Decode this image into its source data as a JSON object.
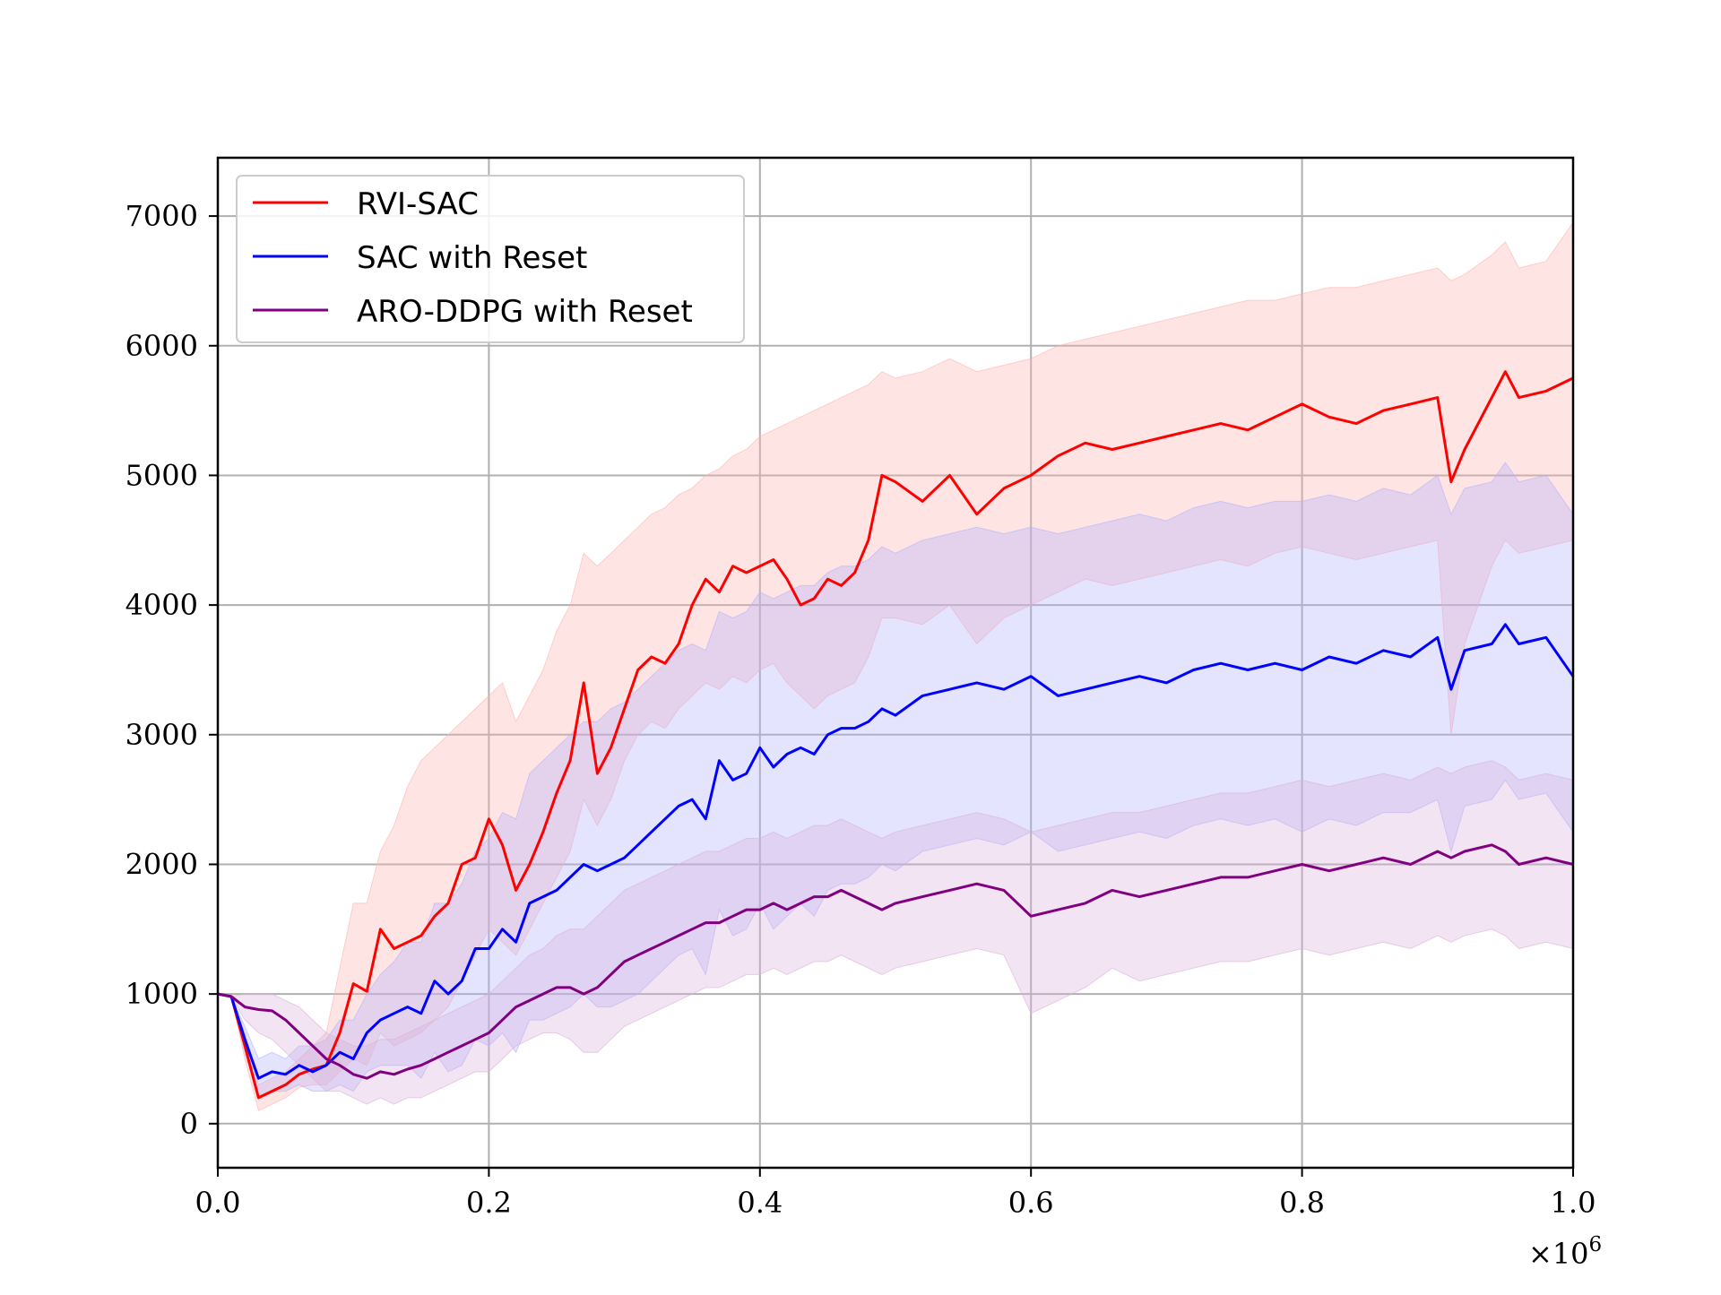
{
  "chart_data": {
    "type": "line",
    "title": "",
    "xlabel": "",
    "ylabel": "",
    "x_multiplier_label": "×10^6",
    "x_multiplier": "×10",
    "x_multiplier_exp": "6",
    "xlim": [
      0.0,
      1.0
    ],
    "ylim": [
      -340,
      7450
    ],
    "x_ticks": [
      0.0,
      0.2,
      0.4,
      0.6,
      0.8,
      1.0
    ],
    "x_tick_labels": [
      "0.0",
      "0.2",
      "0.4",
      "0.6",
      "0.8",
      "1.0"
    ],
    "y_ticks": [
      0,
      1000,
      2000,
      3000,
      4000,
      5000,
      6000,
      7000
    ],
    "y_tick_labels": [
      "0",
      "1000",
      "2000",
      "3000",
      "4000",
      "5000",
      "6000",
      "7000"
    ],
    "grid": true,
    "legend_position": "top-left",
    "bands": "shaded region around each series (variability)",
    "series": [
      {
        "name": "RVI-SAC",
        "color": "#ff0000",
        "band_color": "#ffb3b3",
        "x": [
          0.0,
          0.01,
          0.02,
          0.03,
          0.04,
          0.05,
          0.06,
          0.07,
          0.08,
          0.09,
          0.1,
          0.11,
          0.12,
          0.13,
          0.14,
          0.15,
          0.16,
          0.17,
          0.18,
          0.19,
          0.2,
          0.21,
          0.22,
          0.23,
          0.24,
          0.25,
          0.26,
          0.27,
          0.28,
          0.29,
          0.3,
          0.31,
          0.32,
          0.33,
          0.34,
          0.35,
          0.36,
          0.37,
          0.38,
          0.39,
          0.4,
          0.41,
          0.42,
          0.43,
          0.44,
          0.45,
          0.46,
          0.47,
          0.48,
          0.49,
          0.5,
          0.52,
          0.54,
          0.56,
          0.58,
          0.6,
          0.62,
          0.64,
          0.66,
          0.68,
          0.7,
          0.72,
          0.74,
          0.76,
          0.78,
          0.8,
          0.82,
          0.84,
          0.86,
          0.88,
          0.9,
          0.91,
          0.92,
          0.94,
          0.95,
          0.96,
          0.98,
          1.0
        ],
        "y": [
          1000,
          980,
          600,
          200,
          250,
          300,
          380,
          420,
          450,
          700,
          1080,
          1020,
          1500,
          1350,
          1400,
          1450,
          1600,
          1700,
          2000,
          2050,
          2350,
          2150,
          1800,
          2000,
          2250,
          2550,
          2800,
          3400,
          2700,
          2900,
          3200,
          3500,
          3600,
          3550,
          3700,
          4000,
          4200,
          4100,
          4300,
          4250,
          4300,
          4350,
          4200,
          4000,
          4050,
          4200,
          4150,
          4250,
          4500,
          5000,
          4950,
          4800,
          5000,
          4700,
          4900,
          5000,
          5150,
          5250,
          5200,
          5250,
          5300,
          5350,
          5400,
          5350,
          5450,
          5550,
          5450,
          5400,
          5500,
          5550,
          5600,
          4950,
          5200,
          5600,
          5800,
          5600,
          5650,
          5750
        ],
        "upper": [
          1000,
          980,
          700,
          300,
          350,
          400,
          500,
          600,
          700,
          1200,
          1700,
          1700,
          2100,
          2300,
          2600,
          2800,
          2900,
          3000,
          3100,
          3200,
          3300,
          3400,
          3100,
          3300,
          3500,
          3800,
          4000,
          4400,
          4300,
          4400,
          4500,
          4600,
          4700,
          4750,
          4850,
          4900,
          5000,
          5050,
          5150,
          5200,
          5300,
          5350,
          5400,
          5450,
          5500,
          5550,
          5600,
          5650,
          5700,
          5800,
          5750,
          5800,
          5900,
          5800,
          5850,
          5900,
          6000,
          6050,
          6100,
          6150,
          6200,
          6250,
          6300,
          6350,
          6350,
          6400,
          6450,
          6450,
          6500,
          6550,
          6600,
          6500,
          6550,
          6700,
          6800,
          6600,
          6650,
          6950
        ],
        "lower": [
          1000,
          980,
          500,
          100,
          150,
          200,
          280,
          300,
          300,
          400,
          500,
          450,
          700,
          600,
          650,
          700,
          800,
          900,
          1100,
          1300,
          1500,
          1400,
          1300,
          1500,
          1700,
          1900,
          2100,
          2500,
          2300,
          2500,
          2800,
          3000,
          3100,
          3050,
          3200,
          3300,
          3400,
          3350,
          3450,
          3400,
          3500,
          3550,
          3400,
          3300,
          3200,
          3300,
          3350,
          3400,
          3600,
          3900,
          3900,
          3850,
          4000,
          3700,
          3900,
          4000,
          4100,
          4200,
          4150,
          4200,
          4250,
          4300,
          4350,
          4300,
          4400,
          4450,
          4400,
          4350,
          4400,
          4450,
          4500,
          3000,
          3700,
          4300,
          4500,
          4400,
          4450,
          4500
        ]
      },
      {
        "name": "SAC with Reset",
        "color": "#0000ff",
        "band_color": "#b3b3ff",
        "x": [
          0.0,
          0.01,
          0.02,
          0.03,
          0.04,
          0.05,
          0.06,
          0.07,
          0.08,
          0.09,
          0.1,
          0.11,
          0.12,
          0.13,
          0.14,
          0.15,
          0.16,
          0.17,
          0.18,
          0.19,
          0.2,
          0.21,
          0.22,
          0.23,
          0.24,
          0.25,
          0.26,
          0.27,
          0.28,
          0.29,
          0.3,
          0.31,
          0.32,
          0.33,
          0.34,
          0.35,
          0.36,
          0.37,
          0.38,
          0.39,
          0.4,
          0.41,
          0.42,
          0.43,
          0.44,
          0.45,
          0.46,
          0.47,
          0.48,
          0.49,
          0.5,
          0.52,
          0.54,
          0.56,
          0.58,
          0.6,
          0.62,
          0.64,
          0.66,
          0.68,
          0.7,
          0.72,
          0.74,
          0.76,
          0.78,
          0.8,
          0.82,
          0.84,
          0.86,
          0.88,
          0.9,
          0.91,
          0.92,
          0.94,
          0.95,
          0.96,
          0.98,
          1.0
        ],
        "y": [
          1000,
          980,
          650,
          350,
          400,
          380,
          450,
          400,
          450,
          550,
          500,
          700,
          800,
          850,
          900,
          850,
          1100,
          1000,
          1100,
          1350,
          1350,
          1500,
          1400,
          1700,
          1750,
          1800,
          1900,
          2000,
          1950,
          2000,
          2050,
          2150,
          2250,
          2350,
          2450,
          2500,
          2350,
          2800,
          2650,
          2700,
          2900,
          2750,
          2850,
          2900,
          2850,
          3000,
          3050,
          3050,
          3100,
          3200,
          3150,
          3300,
          3350,
          3400,
          3350,
          3450,
          3300,
          3350,
          3400,
          3450,
          3400,
          3500,
          3550,
          3500,
          3550,
          3500,
          3600,
          3550,
          3650,
          3600,
          3750,
          3350,
          3650,
          3700,
          3850,
          3700,
          3750,
          3450
        ],
        "upper": [
          1000,
          980,
          750,
          500,
          550,
          500,
          600,
          600,
          650,
          800,
          800,
          1000,
          1150,
          1250,
          1400,
          1400,
          1700,
          1700,
          1850,
          2100,
          2200,
          2400,
          2350,
          2700,
          2800,
          2900,
          3000,
          3100,
          3100,
          3200,
          3250,
          3350,
          3450,
          3550,
          3650,
          3700,
          3650,
          3950,
          3900,
          3950,
          4100,
          4050,
          4100,
          4150,
          4150,
          4250,
          4300,
          4300,
          4350,
          4450,
          4400,
          4500,
          4550,
          4600,
          4550,
          4600,
          4550,
          4600,
          4650,
          4700,
          4650,
          4750,
          4800,
          4750,
          4800,
          4800,
          4850,
          4800,
          4900,
          4850,
          5000,
          4700,
          4900,
          4950,
          5100,
          4950,
          5000,
          4700
        ],
        "lower": [
          1000,
          980,
          550,
          200,
          250,
          250,
          300,
          250,
          250,
          300,
          250,
          400,
          450,
          450,
          450,
          350,
          550,
          400,
          450,
          650,
          600,
          700,
          550,
          800,
          800,
          850,
          900,
          1000,
          900,
          900,
          950,
          1000,
          1100,
          1200,
          1300,
          1350,
          1150,
          1650,
          1450,
          1500,
          1700,
          1500,
          1600,
          1700,
          1600,
          1800,
          1850,
          1850,
          1900,
          2000,
          1950,
          2100,
          2150,
          2200,
          2150,
          2250,
          2100,
          2150,
          2200,
          2250,
          2200,
          2300,
          2350,
          2300,
          2350,
          2250,
          2350,
          2300,
          2400,
          2400,
          2500,
          2100,
          2450,
          2500,
          2650,
          2500,
          2550,
          2250
        ]
      },
      {
        "name": "ARO-DDPG with Reset",
        "color": "#800080",
        "band_color": "#d9b3d9",
        "x": [
          0.0,
          0.01,
          0.02,
          0.03,
          0.04,
          0.05,
          0.06,
          0.07,
          0.08,
          0.09,
          0.1,
          0.11,
          0.12,
          0.13,
          0.14,
          0.15,
          0.16,
          0.17,
          0.18,
          0.19,
          0.2,
          0.21,
          0.22,
          0.23,
          0.24,
          0.25,
          0.26,
          0.27,
          0.28,
          0.29,
          0.3,
          0.31,
          0.32,
          0.33,
          0.34,
          0.35,
          0.36,
          0.37,
          0.38,
          0.39,
          0.4,
          0.41,
          0.42,
          0.43,
          0.44,
          0.45,
          0.46,
          0.47,
          0.48,
          0.49,
          0.5,
          0.52,
          0.54,
          0.56,
          0.58,
          0.6,
          0.62,
          0.64,
          0.66,
          0.68,
          0.7,
          0.72,
          0.74,
          0.76,
          0.78,
          0.8,
          0.82,
          0.84,
          0.86,
          0.88,
          0.9,
          0.91,
          0.92,
          0.94,
          0.95,
          0.96,
          0.98,
          1.0
        ],
        "y": [
          1000,
          980,
          900,
          880,
          870,
          800,
          700,
          600,
          500,
          450,
          380,
          350,
          400,
          380,
          420,
          450,
          500,
          550,
          600,
          650,
          700,
          800,
          900,
          950,
          1000,
          1050,
          1050,
          1000,
          1050,
          1150,
          1250,
          1300,
          1350,
          1400,
          1450,
          1500,
          1550,
          1550,
          1600,
          1650,
          1650,
          1700,
          1650,
          1700,
          1750,
          1750,
          1800,
          1750,
          1700,
          1650,
          1700,
          1750,
          1800,
          1850,
          1800,
          1600,
          1650,
          1700,
          1800,
          1750,
          1800,
          1850,
          1900,
          1900,
          1950,
          2000,
          1950,
          2000,
          2050,
          2000,
          2100,
          2050,
          2100,
          2150,
          2100,
          2000,
          2050,
          2000
        ],
        "upper": [
          1000,
          980,
          1000,
          1000,
          1000,
          950,
          900,
          800,
          700,
          650,
          600,
          600,
          650,
          650,
          700,
          750,
          800,
          850,
          900,
          950,
          1000,
          1100,
          1200,
          1300,
          1350,
          1450,
          1500,
          1500,
          1600,
          1700,
          1800,
          1850,
          1900,
          1950,
          2000,
          2050,
          2100,
          2100,
          2150,
          2200,
          2200,
          2250,
          2200,
          2250,
          2300,
          2300,
          2350,
          2300,
          2250,
          2200,
          2250,
          2300,
          2350,
          2400,
          2350,
          2250,
          2300,
          2350,
          2400,
          2400,
          2450,
          2500,
          2550,
          2550,
          2600,
          2650,
          2600,
          2650,
          2700,
          2650,
          2750,
          2700,
          2750,
          2800,
          2750,
          2650,
          2700,
          2650
        ],
        "lower": [
          1000,
          980,
          800,
          700,
          650,
          550,
          450,
          350,
          250,
          250,
          200,
          150,
          200,
          150,
          200,
          200,
          250,
          300,
          350,
          400,
          400,
          500,
          600,
          650,
          700,
          700,
          650,
          550,
          550,
          650,
          750,
          800,
          850,
          900,
          950,
          1000,
          1050,
          1050,
          1100,
          1150,
          1150,
          1200,
          1150,
          1200,
          1250,
          1250,
          1300,
          1250,
          1200,
          1150,
          1200,
          1250,
          1300,
          1350,
          1300,
          850,
          950,
          1050,
          1200,
          1100,
          1150,
          1200,
          1250,
          1250,
          1300,
          1350,
          1300,
          1350,
          1400,
          1350,
          1450,
          1400,
          1450,
          1500,
          1450,
          1350,
          1400,
          1350
        ]
      }
    ]
  }
}
